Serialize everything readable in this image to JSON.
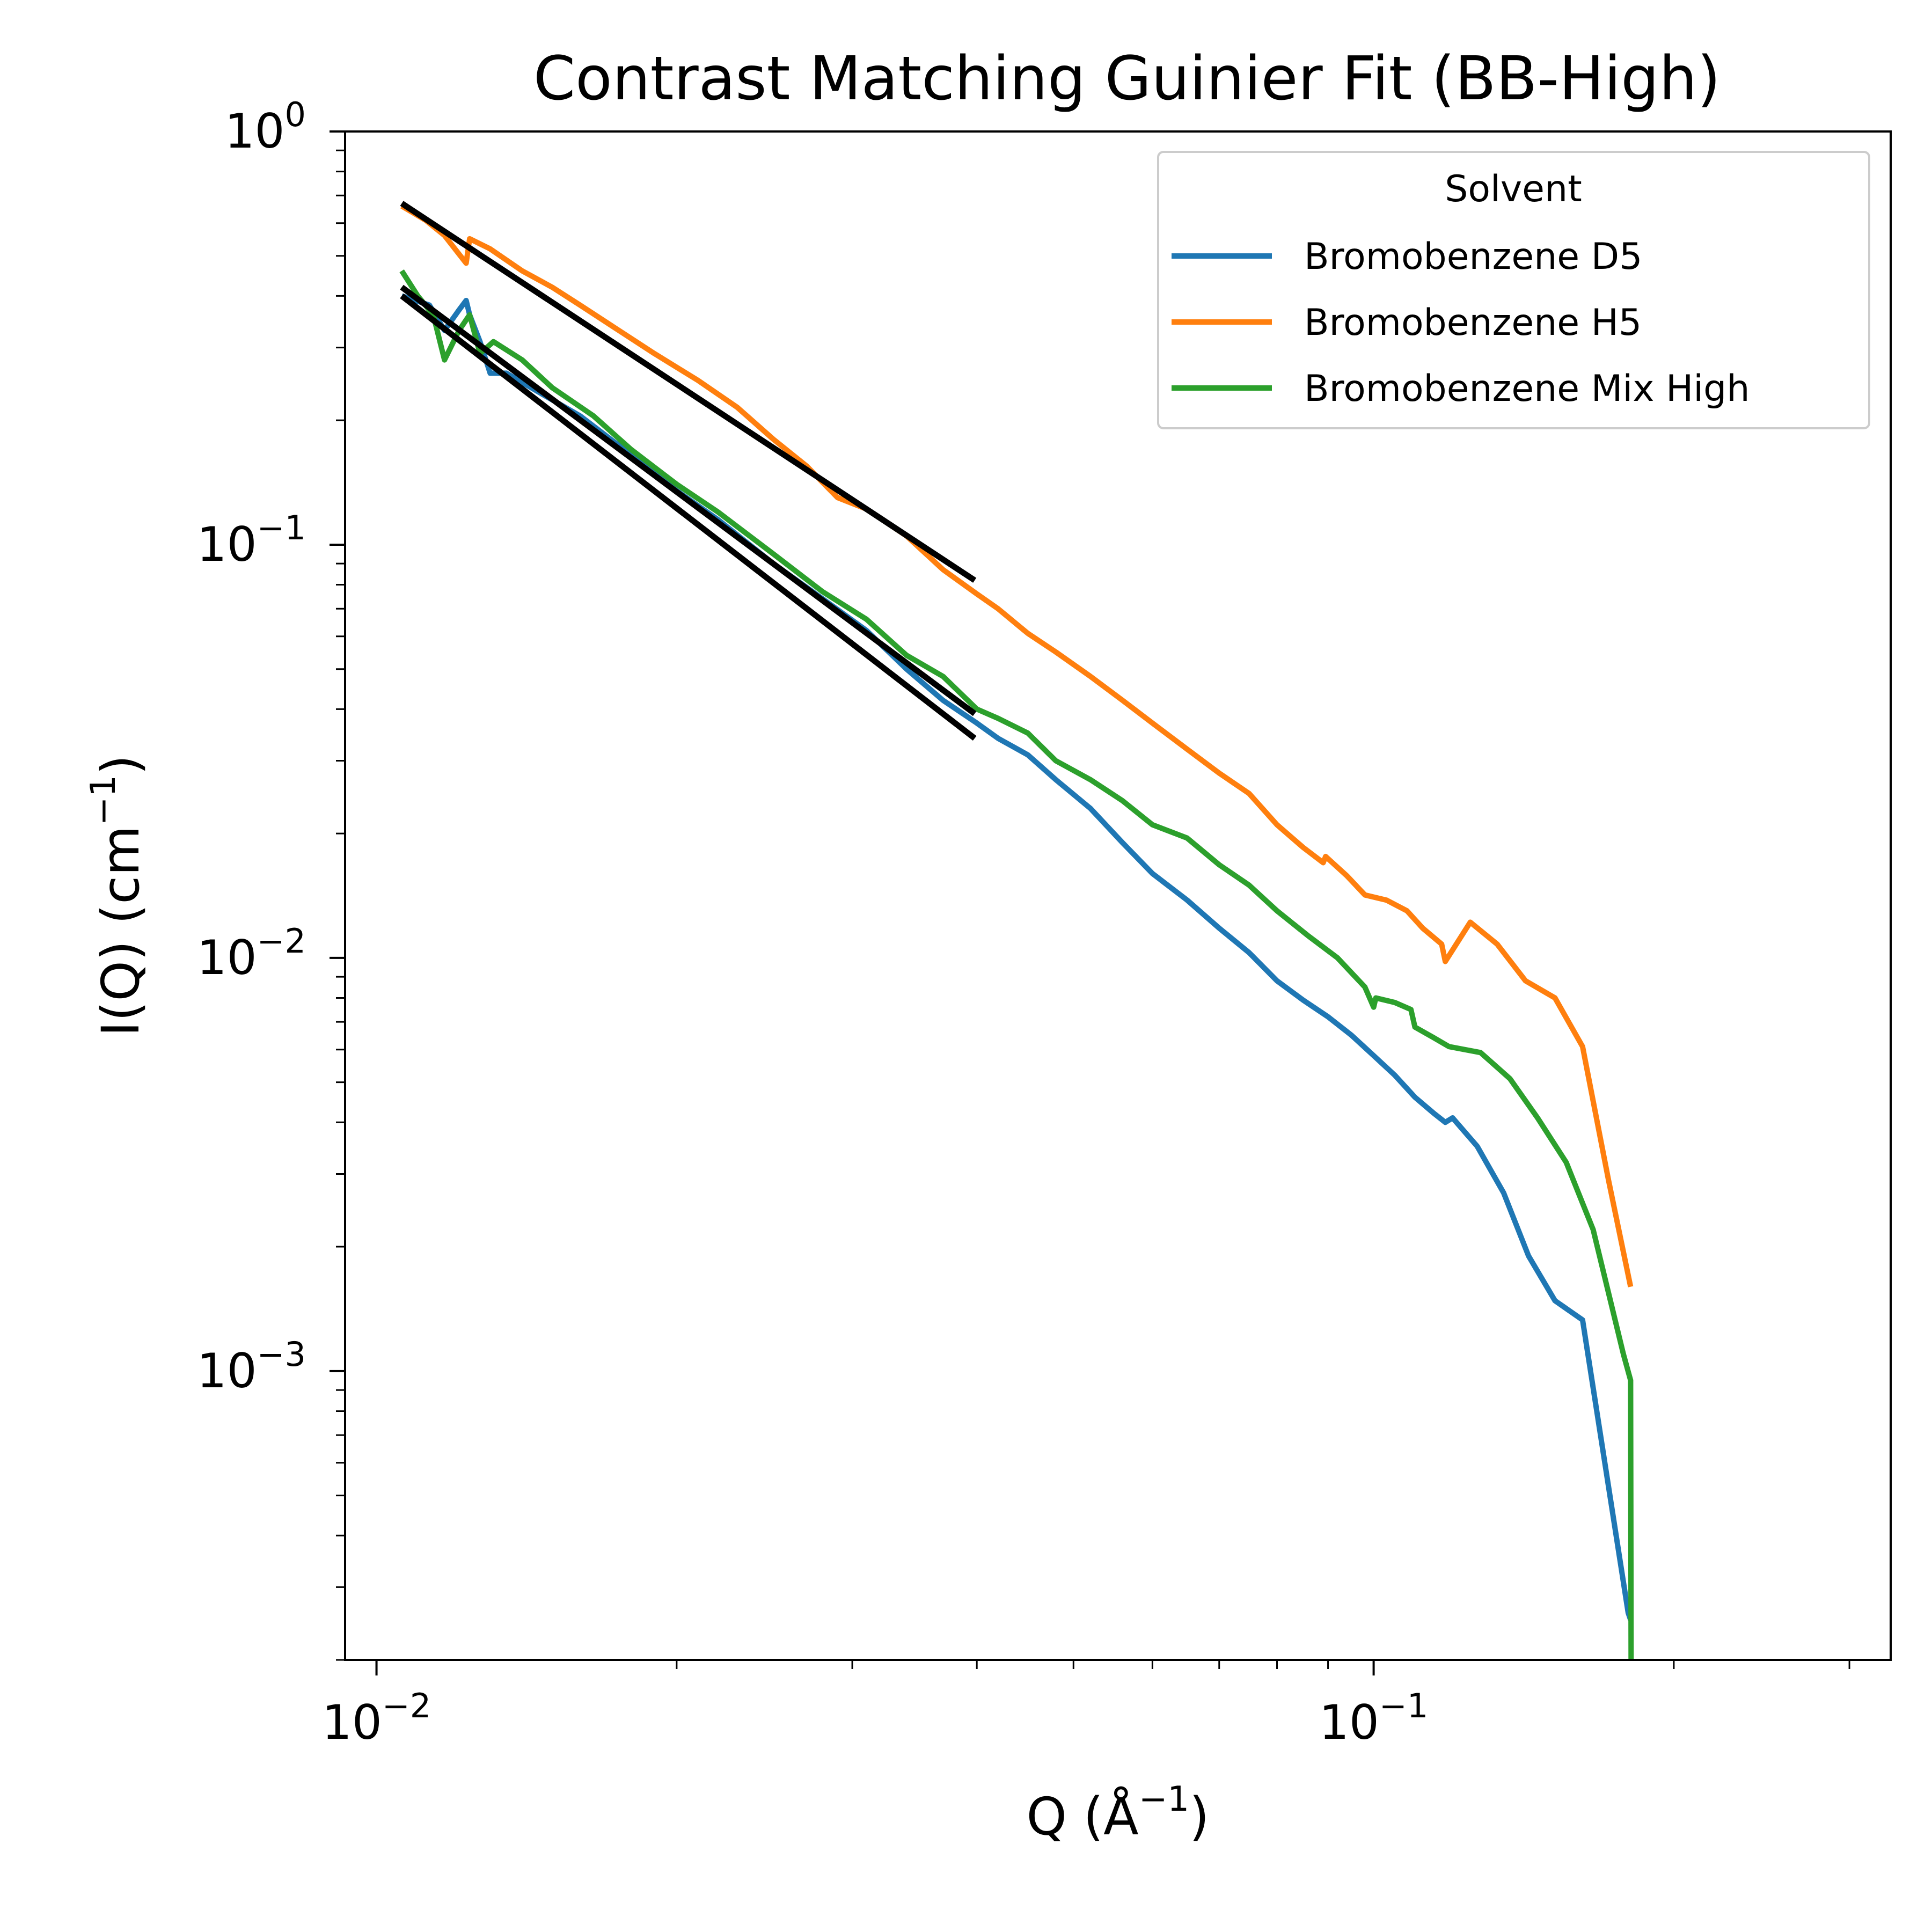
{
  "chart_data": {
    "type": "line",
    "title": "Contrast Matching Guinier Fit (BB-High)",
    "xlabel": "Q (Å",
    "xlabel_sup": "−1",
    "xlabel_close": ")",
    "ylabel": "I(Q) (cm",
    "ylabel_sup": "−1",
    "ylabel_close": ")",
    "xscale": "log",
    "yscale": "log",
    "xlim": [
      0.0093,
      0.33
    ],
    "ylim": [
      0.0002,
      1.0
    ],
    "x_tick_labels": [
      {
        "value": 0.01,
        "base": "10",
        "exp": "−2"
      },
      {
        "value": 0.1,
        "base": "10",
        "exp": "−1"
      }
    ],
    "y_tick_labels": [
      {
        "value": 1,
        "base": "10",
        "exp": "0"
      },
      {
        "value": 0.1,
        "base": "10",
        "exp": "−1"
      },
      {
        "value": 0.01,
        "base": "10",
        "exp": "−2"
      },
      {
        "value": 0.001,
        "base": "10",
        "exp": "−3"
      }
    ],
    "grid": false,
    "legend": {
      "title": "Solvent",
      "placement": "top-right"
    },
    "series": [
      {
        "name": "Bromobenzene D5",
        "color": "#1f77b4",
        "points": [
          [
            0.0106,
            0.4
          ],
          [
            0.0113,
            0.38
          ],
          [
            0.0117,
            0.33
          ],
          [
            0.0121,
            0.37
          ],
          [
            0.0123,
            0.39
          ],
          [
            0.0124,
            0.36
          ],
          [
            0.0127,
            0.31
          ],
          [
            0.013,
            0.26
          ],
          [
            0.0135,
            0.26
          ],
          [
            0.0145,
            0.235
          ],
          [
            0.016,
            0.205
          ],
          [
            0.018,
            0.165
          ],
          [
            0.02,
            0.135
          ],
          [
            0.022,
            0.115
          ],
          [
            0.025,
            0.09
          ],
          [
            0.028,
            0.074
          ],
          [
            0.031,
            0.062
          ],
          [
            0.034,
            0.05
          ],
          [
            0.037,
            0.042
          ],
          [
            0.04,
            0.037
          ],
          [
            0.042,
            0.034
          ],
          [
            0.045,
            0.031
          ],
          [
            0.048,
            0.027
          ],
          [
            0.052,
            0.023
          ],
          [
            0.056,
            0.019
          ],
          [
            0.06,
            0.016
          ],
          [
            0.065,
            0.0138
          ],
          [
            0.07,
            0.0118
          ],
          [
            0.075,
            0.0103
          ],
          [
            0.08,
            0.0088
          ],
          [
            0.085,
            0.0079
          ],
          [
            0.09,
            0.0072
          ],
          [
            0.095,
            0.0065
          ],
          [
            0.1,
            0.0058
          ],
          [
            0.105,
            0.0052
          ],
          [
            0.11,
            0.0046
          ],
          [
            0.115,
            0.0042
          ],
          [
            0.118,
            0.004
          ],
          [
            0.12,
            0.0041
          ],
          [
            0.127,
            0.0035
          ],
          [
            0.135,
            0.0027
          ],
          [
            0.143,
            0.0019
          ],
          [
            0.152,
            0.00148
          ],
          [
            0.162,
            0.00133
          ],
          [
            0.18,
            0.00026
          ],
          [
            0.181,
            0.00025
          ]
        ]
      },
      {
        "name": "Bromobenzene H5",
        "color": "#ff7f0e",
        "points": [
          [
            0.0106,
            0.66
          ],
          [
            0.0112,
            0.61
          ],
          [
            0.0117,
            0.56
          ],
          [
            0.0123,
            0.48
          ],
          [
            0.0124,
            0.55
          ],
          [
            0.013,
            0.52
          ],
          [
            0.014,
            0.46
          ],
          [
            0.015,
            0.42
          ],
          [
            0.016,
            0.38
          ],
          [
            0.0175,
            0.33
          ],
          [
            0.019,
            0.29
          ],
          [
            0.021,
            0.25
          ],
          [
            0.023,
            0.215
          ],
          [
            0.025,
            0.18
          ],
          [
            0.027,
            0.155
          ],
          [
            0.029,
            0.13
          ],
          [
            0.031,
            0.122
          ],
          [
            0.034,
            0.105
          ],
          [
            0.037,
            0.087
          ],
          [
            0.04,
            0.076
          ],
          [
            0.042,
            0.07
          ],
          [
            0.045,
            0.061
          ],
          [
            0.048,
            0.055
          ],
          [
            0.052,
            0.048
          ],
          [
            0.056,
            0.042
          ],
          [
            0.06,
            0.037
          ],
          [
            0.065,
            0.032
          ],
          [
            0.07,
            0.028
          ],
          [
            0.075,
            0.025
          ],
          [
            0.08,
            0.021
          ],
          [
            0.085,
            0.0185
          ],
          [
            0.089,
            0.017
          ],
          [
            0.0895,
            0.0176
          ],
          [
            0.094,
            0.0158
          ],
          [
            0.098,
            0.0142
          ],
          [
            0.103,
            0.0138
          ],
          [
            0.108,
            0.013
          ],
          [
            0.112,
            0.0118
          ],
          [
            0.117,
            0.0108
          ],
          [
            0.118,
            0.0098
          ],
          [
            0.125,
            0.0122
          ],
          [
            0.133,
            0.0108
          ],
          [
            0.142,
            0.0088
          ],
          [
            0.152,
            0.008
          ],
          [
            0.162,
            0.0061
          ],
          [
            0.172,
            0.0029
          ],
          [
            0.181,
            0.0016
          ]
        ]
      },
      {
        "name": "Bromobenzene Mix High",
        "color": "#2ca02c",
        "points": [
          [
            0.0106,
            0.46
          ],
          [
            0.011,
            0.4
          ],
          [
            0.0114,
            0.36
          ],
          [
            0.0117,
            0.28
          ],
          [
            0.0121,
            0.33
          ],
          [
            0.0124,
            0.36
          ],
          [
            0.0127,
            0.29
          ],
          [
            0.0131,
            0.31
          ],
          [
            0.014,
            0.28
          ],
          [
            0.015,
            0.24
          ],
          [
            0.0165,
            0.205
          ],
          [
            0.018,
            0.17
          ],
          [
            0.02,
            0.14
          ],
          [
            0.022,
            0.12
          ],
          [
            0.025,
            0.095
          ],
          [
            0.028,
            0.077
          ],
          [
            0.031,
            0.066
          ],
          [
            0.034,
            0.054
          ],
          [
            0.037,
            0.048
          ],
          [
            0.04,
            0.04
          ],
          [
            0.042,
            0.038
          ],
          [
            0.045,
            0.035
          ],
          [
            0.048,
            0.03
          ],
          [
            0.052,
            0.027
          ],
          [
            0.056,
            0.024
          ],
          [
            0.06,
            0.021
          ],
          [
            0.065,
            0.0195
          ],
          [
            0.07,
            0.0168
          ],
          [
            0.075,
            0.015
          ],
          [
            0.08,
            0.013
          ],
          [
            0.086,
            0.0113
          ],
          [
            0.092,
            0.01
          ],
          [
            0.098,
            0.0085
          ],
          [
            0.1,
            0.0076
          ],
          [
            0.1005,
            0.008
          ],
          [
            0.105,
            0.0078
          ],
          [
            0.109,
            0.0075
          ],
          [
            0.11,
            0.0068
          ],
          [
            0.115,
            0.0064
          ],
          [
            0.119,
            0.0061
          ],
          [
            0.128,
            0.0059
          ],
          [
            0.137,
            0.0051
          ],
          [
            0.146,
            0.0041
          ],
          [
            0.156,
            0.0032
          ],
          [
            0.166,
            0.0022
          ],
          [
            0.178,
            0.0011
          ],
          [
            0.181,
            0.00095
          ],
          [
            0.1812,
            0.0002
          ]
        ]
      },
      {
        "name": "",
        "color": "#000000",
        "points": [
          [
            0.0106,
            0.67
          ],
          [
            0.0398,
            0.082
          ]
        ]
      },
      {
        "name": "",
        "color": "#000000",
        "points": [
          [
            0.0106,
            0.42
          ],
          [
            0.0398,
            0.039
          ]
        ]
      },
      {
        "name": "",
        "color": "#000000",
        "points": [
          [
            0.0106,
            0.4
          ],
          [
            0.0398,
            0.034
          ]
        ]
      }
    ]
  }
}
